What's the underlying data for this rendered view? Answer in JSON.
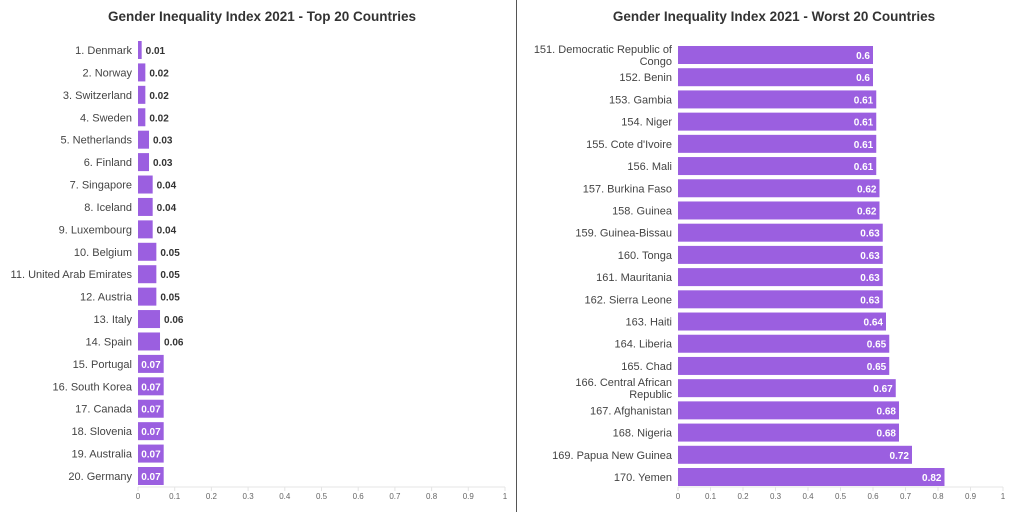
{
  "chart_data": [
    {
      "type": "bar",
      "orientation": "horizontal",
      "title": "Gender Inequality Index 2021 - Top 20 Countries",
      "categories": [
        "1. Denmark",
        "2. Norway",
        "3. Switzerland",
        "4. Sweden",
        "5. Netherlands",
        "6. Finland",
        "7. Singapore",
        "8. Iceland",
        "9. Luxembourg",
        "10. Belgium",
        "11. United Arab Emirates",
        "12. Austria",
        "13. Italy",
        "14. Spain",
        "15. Portugal",
        "16. South Korea",
        "17. Canada",
        "18. Slovenia",
        "19. Australia",
        "20. Germany"
      ],
      "values": [
        0.01,
        0.02,
        0.02,
        0.02,
        0.03,
        0.03,
        0.04,
        0.04,
        0.04,
        0.05,
        0.05,
        0.05,
        0.06,
        0.06,
        0.07,
        0.07,
        0.07,
        0.07,
        0.07,
        0.07
      ],
      "xlim": [
        0,
        1
      ],
      "xticks": [
        "0",
        "0.1",
        "0.2",
        "0.3",
        "0.4",
        "0.5",
        "0.6",
        "0.7",
        "0.8",
        "0.9",
        "1"
      ],
      "grid": false,
      "color": "#9b5fe0"
    },
    {
      "type": "bar",
      "orientation": "horizontal",
      "title": "Gender Inequality Index 2021 - Worst 20 Countries",
      "categories": [
        "151. Democratic Republic of Congo",
        "152. Benin",
        "153. Gambia",
        "154. Niger",
        "155. Cote d'Ivoire",
        "156. Mali",
        "157. Burkina Faso",
        "158. Guinea",
        "159. Guinea-Bissau",
        "160. Tonga",
        "161. Mauritania",
        "162. Sierra Leone",
        "163. Haiti",
        "164. Liberia",
        "165. Chad",
        "166. Central African Republic",
        "167. Afghanistan",
        "168. Nigeria",
        "169. Papua New Guinea",
        "170. Yemen"
      ],
      "values": [
        0.6,
        0.6,
        0.61,
        0.61,
        0.61,
        0.61,
        0.62,
        0.62,
        0.63,
        0.63,
        0.63,
        0.63,
        0.64,
        0.65,
        0.65,
        0.67,
        0.68,
        0.68,
        0.72,
        0.82
      ],
      "xlim": [
        0,
        1
      ],
      "xticks": [
        "0",
        "0.1",
        "0.2",
        "0.3",
        "0.4",
        "0.5",
        "0.6",
        "0.7",
        "0.8",
        "0.9",
        "1"
      ],
      "grid": false,
      "color": "#9b5fe0"
    }
  ]
}
